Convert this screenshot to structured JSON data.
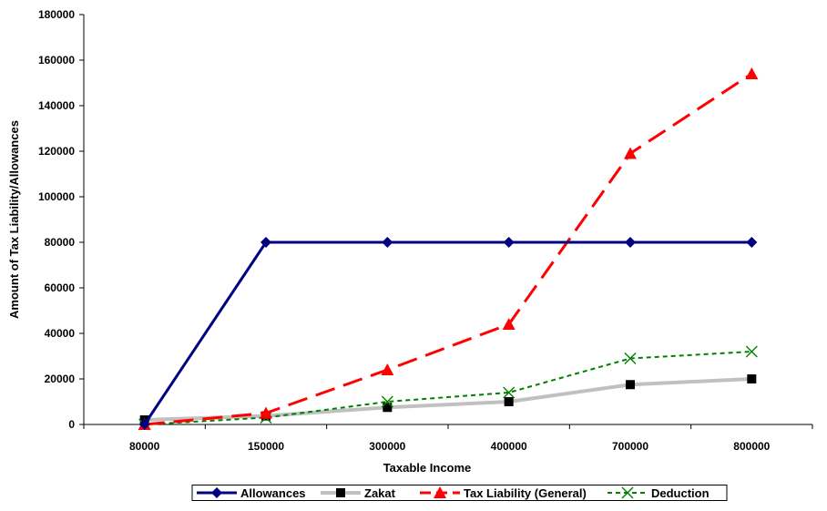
{
  "chart_data": {
    "type": "line",
    "title": "",
    "xlabel": "Taxable Income",
    "ylabel": "Amount of Tax Liability/Allowances",
    "categories": [
      "80000",
      "150000",
      "300000",
      "400000",
      "700000",
      "800000"
    ],
    "ylim": [
      0,
      180000
    ],
    "yticks": [
      "0",
      "20000",
      "40000",
      "60000",
      "80000",
      "100000",
      "120000",
      "140000",
      "160000",
      "180000"
    ],
    "grid": false,
    "legend_position": "bottom",
    "series": [
      {
        "name": "Allowances",
        "values": [
          0,
          80000,
          80000,
          80000,
          80000,
          80000
        ],
        "color": "#000080",
        "marker": "diamond",
        "line": "solid"
      },
      {
        "name": "Zakat",
        "values": [
          2000,
          3750,
          7500,
          10000,
          17500,
          20000
        ],
        "color": "#c0c0c0",
        "marker_color": "#000000",
        "marker": "square",
        "line": "solid"
      },
      {
        "name": "Tax Liability (General)",
        "values": [
          0,
          5000,
          24000,
          44000,
          119000,
          154000
        ],
        "color": "#ff0000",
        "marker": "triangle",
        "line": "dashed"
      },
      {
        "name": "Deduction",
        "values": [
          0,
          3000,
          10000,
          14000,
          29000,
          32000
        ],
        "color": "#008000",
        "marker": "x",
        "line": "dotted"
      }
    ]
  }
}
